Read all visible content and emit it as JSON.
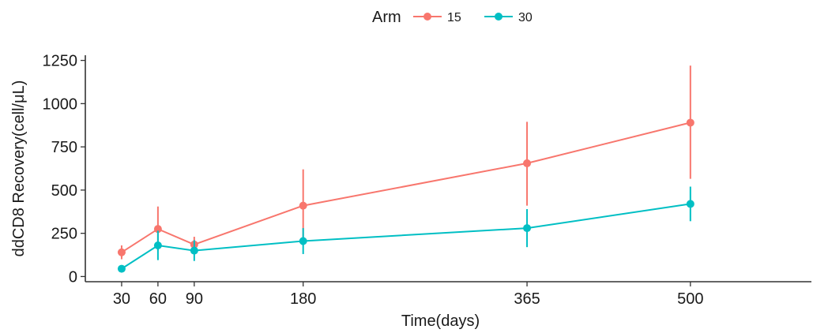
{
  "chart_data": {
    "type": "line",
    "xlabel": "Time(days)",
    "ylabel": "ddCD8 Recovery(cell/μL)",
    "x_ticks": [
      30,
      60,
      90,
      180,
      365,
      500
    ],
    "y_ticks": [
      0,
      250,
      500,
      750,
      1000,
      1250
    ],
    "xlim": [
      0,
      600
    ],
    "ylim": [
      -30,
      1280
    ],
    "legend": {
      "title": "Arm",
      "position": "top"
    },
    "grid": false,
    "series": [
      {
        "name": "15",
        "color": "#F8766D",
        "points": [
          {
            "x": 30,
            "y": 140,
            "lo": 100,
            "hi": 180
          },
          {
            "x": 60,
            "y": 275,
            "lo": 150,
            "hi": 405
          },
          {
            "x": 90,
            "y": 185,
            "lo": 140,
            "hi": 230
          },
          {
            "x": 180,
            "y": 410,
            "lo": 200,
            "hi": 620
          },
          {
            "x": 365,
            "y": 655,
            "lo": 410,
            "hi": 895
          },
          {
            "x": 500,
            "y": 890,
            "lo": 565,
            "hi": 1220
          }
        ]
      },
      {
        "name": "30",
        "color": "#00BFC4",
        "points": [
          {
            "x": 30,
            "y": 45,
            "lo": 35,
            "hi": 55
          },
          {
            "x": 60,
            "y": 180,
            "lo": 95,
            "hi": 265
          },
          {
            "x": 90,
            "y": 150,
            "lo": 90,
            "hi": 210
          },
          {
            "x": 180,
            "y": 205,
            "lo": 130,
            "hi": 280
          },
          {
            "x": 365,
            "y": 280,
            "lo": 170,
            "hi": 390
          },
          {
            "x": 500,
            "y": 420,
            "lo": 320,
            "hi": 520
          }
        ]
      }
    ]
  }
}
